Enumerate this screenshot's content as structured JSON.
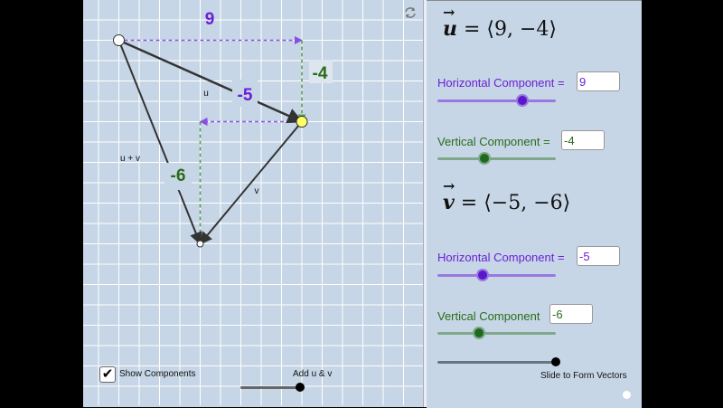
{
  "graph": {
    "vector_u": {
      "x": 9,
      "y": -4,
      "label": "u"
    },
    "vector_v": {
      "x": -5,
      "y": -6,
      "label": "v"
    },
    "sum_label": "u + v",
    "u_horizontal_label": "9",
    "u_vertical_label": "-4",
    "v_horizontal_label": "-5",
    "v_vertical_label": "-6",
    "show_components": {
      "label": "Show Components",
      "checked": true
    },
    "add_slider": {
      "label": "Add u & v",
      "level": 1
    },
    "reset_icon": "refresh-icon"
  },
  "panel": {
    "u_equation": {
      "name": "u",
      "rest": " = ⟨9, −4⟩"
    },
    "u_horizontal": {
      "label": "Horizontal Component =",
      "value": "9",
      "level": 0.72
    },
    "u_vertical": {
      "label": "Vertical Component =",
      "value": "-4",
      "level": 0.4
    },
    "v_equation": {
      "name": "v",
      "rest": " = ⟨−5, −6⟩"
    },
    "v_horizontal": {
      "label": "Horizontal Component =",
      "value": "-5",
      "level": 0.38
    },
    "v_vertical": {
      "label": "Vertical Component",
      "value": "-6",
      "level": 0.35
    },
    "form_slider": {
      "label": "Slide to Form Vectors",
      "level": 1
    }
  },
  "colors": {
    "purple": "#6b1fd6",
    "green": "#2a6b1a",
    "background": "#c6d6e6",
    "grid": "#ffffff",
    "vector": "#333333",
    "point": "#ffff66"
  }
}
